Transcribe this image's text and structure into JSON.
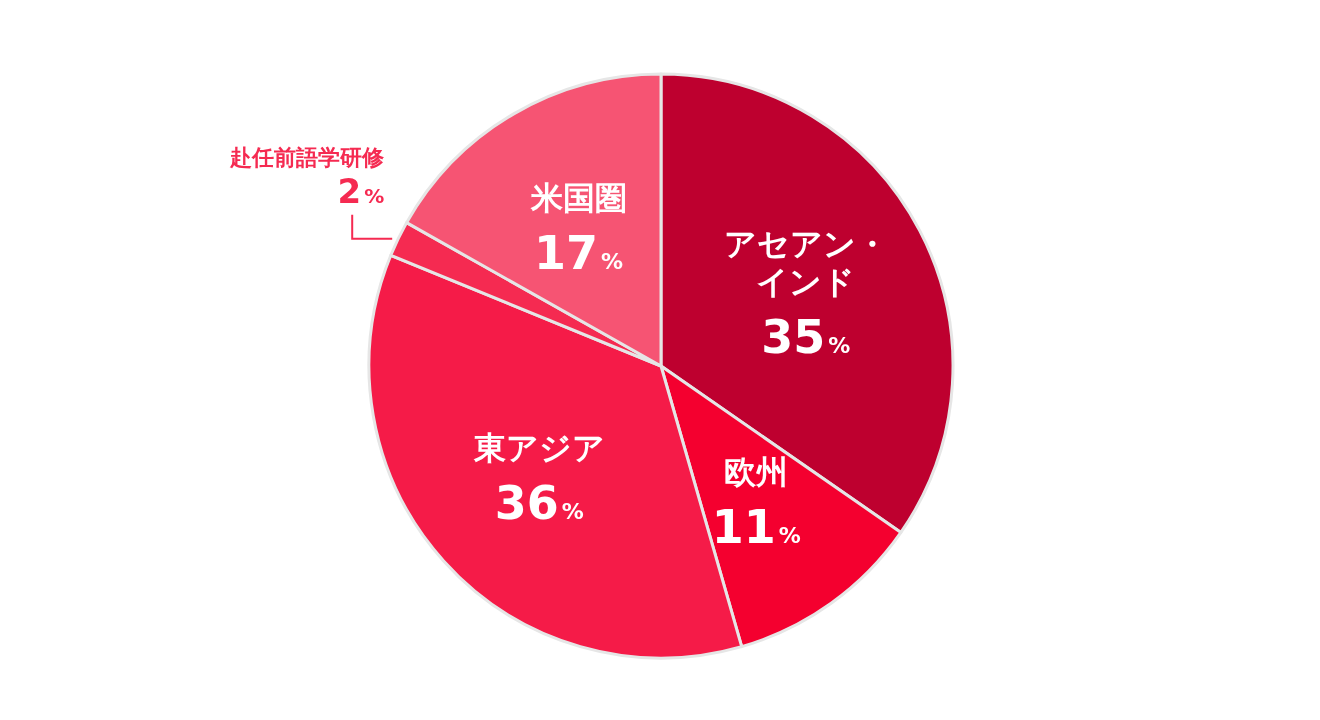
{
  "chart_data": {
    "type": "pie",
    "categories": [
      "アセアン・インド",
      "欧州",
      "東アジア",
      "赴任前語学研修",
      "米国圏"
    ],
    "values": [
      35,
      11,
      36,
      2,
      17
    ],
    "value_labels": [
      "35%",
      "11%",
      "36%",
      "2%",
      "17%"
    ],
    "colors": [
      "#be002f",
      "#f4002f",
      "#f51b48",
      "#f52a51",
      "#f65473"
    ]
  }
}
